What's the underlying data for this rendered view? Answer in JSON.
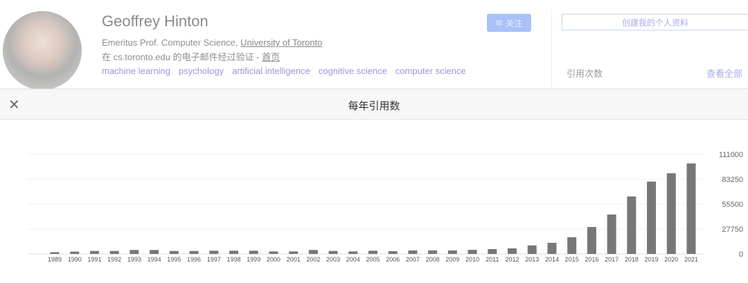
{
  "profile": {
    "name": "Geoffrey Hinton",
    "affiliation_prefix": "Emeritus Prof. Computer Science, ",
    "affiliation_link": "University of Toronto",
    "email_text": "在 cs.toronto.edu 的电子邮件经过验证 - ",
    "homepage_link": "首页",
    "tags": [
      "machine learning",
      "psychology",
      "artificial intelligence",
      "cognitive science",
      "computer science"
    ],
    "follow_label": "关注",
    "create_profile_label": "创建我的个人资料",
    "citations_label": "引用次数",
    "view_all_label": "查看全部"
  },
  "modal": {
    "title": "每年引用数",
    "close_icon": "close-icon"
  },
  "chart_data": {
    "type": "bar",
    "categories": [
      "1989",
      "1990",
      "1991",
      "1992",
      "1993",
      "1994",
      "1995",
      "1996",
      "1997",
      "1998",
      "1999",
      "2000",
      "2001",
      "2002",
      "2003",
      "2004",
      "2005",
      "2006",
      "2007",
      "2008",
      "2009",
      "2010",
      "2011",
      "2012",
      "2013",
      "2014",
      "2015",
      "2016",
      "2017",
      "2018",
      "2019",
      "2020",
      "2021"
    ],
    "values": [
      2000,
      2600,
      3300,
      3300,
      4400,
      4400,
      3300,
      3300,
      3600,
      3600,
      3600,
      2800,
      2800,
      4400,
      3300,
      2800,
      3600,
      3100,
      3900,
      3900,
      3900,
      4600,
      5400,
      6200,
      9500,
      12400,
      18600,
      30000,
      43900,
      64000,
      80600,
      89900,
      100800
    ],
    "yticks": [
      "0",
      "27750",
      "55500",
      "83250",
      "111000"
    ],
    "ylim": [
      0,
      111000
    ],
    "grid": true,
    "bar_color": "#777777"
  }
}
